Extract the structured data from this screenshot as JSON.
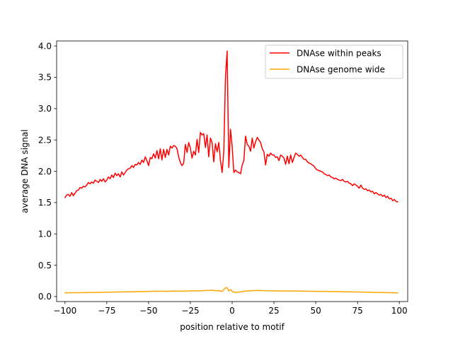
{
  "chart_data": {
    "type": "line",
    "title": "",
    "xlabel": "position relative to motif",
    "ylabel": "average DNA signal",
    "xlim": [
      -105,
      105
    ],
    "ylim": [
      -0.08,
      4.08
    ],
    "xticks": [
      -100,
      -75,
      -50,
      -25,
      0,
      25,
      50,
      75,
      100
    ],
    "yticks": [
      0.0,
      0.5,
      1.0,
      1.5,
      2.0,
      2.5,
      3.0,
      3.5,
      4.0
    ],
    "xtick_labels": [
      "−100",
      "−75",
      "−50",
      "−25",
      "0",
      "25",
      "50",
      "75",
      "100"
    ],
    "ytick_labels": [
      "0.0",
      "0.5",
      "1.0",
      "1.5",
      "2.0",
      "2.5",
      "3.0",
      "3.5",
      "4.0"
    ],
    "grid": false,
    "legend_position": "top-right",
    "series": [
      {
        "name": "DNAse within peaks",
        "color": "#ff0000",
        "points": [
          [
            -100,
            1.58
          ],
          [
            -99,
            1.62
          ],
          [
            -98,
            1.63
          ],
          [
            -97,
            1.6
          ],
          [
            -96,
            1.66
          ],
          [
            -95,
            1.61
          ],
          [
            -94,
            1.65
          ],
          [
            -93,
            1.69
          ],
          [
            -92,
            1.7
          ],
          [
            -91,
            1.74
          ],
          [
            -90,
            1.73
          ],
          [
            -89,
            1.76
          ],
          [
            -88,
            1.75
          ],
          [
            -87,
            1.78
          ],
          [
            -86,
            1.82
          ],
          [
            -85,
            1.8
          ],
          [
            -84,
            1.83
          ],
          [
            -83,
            1.81
          ],
          [
            -82,
            1.86
          ],
          [
            -81,
            1.84
          ],
          [
            -80,
            1.82
          ],
          [
            -79,
            1.87
          ],
          [
            -78,
            1.84
          ],
          [
            -77,
            1.88
          ],
          [
            -76,
            1.83
          ],
          [
            -75,
            1.86
          ],
          [
            -74,
            1.91
          ],
          [
            -73,
            1.88
          ],
          [
            -72,
            1.94
          ],
          [
            -71,
            1.9
          ],
          [
            -70,
            1.97
          ],
          [
            -69,
            1.93
          ],
          [
            -68,
            1.96
          ],
          [
            -67,
            1.91
          ],
          [
            -66,
            1.99
          ],
          [
            -65,
            1.94
          ],
          [
            -64,
            1.98
          ],
          [
            -63,
            2.02
          ],
          [
            -62,
            2.04
          ],
          [
            -61,
            2.05
          ],
          [
            -60,
            2.09
          ],
          [
            -59,
            2.06
          ],
          [
            -58,
            2.11
          ],
          [
            -57,
            2.1
          ],
          [
            -56,
            2.14
          ],
          [
            -55,
            2.11
          ],
          [
            -54,
            2.18
          ],
          [
            -53,
            2.14
          ],
          [
            -52,
            2.23
          ],
          [
            -51,
            2.17
          ],
          [
            -50,
            2.09
          ],
          [
            -49,
            2.22
          ],
          [
            -48,
            2.2
          ],
          [
            -47,
            2.28
          ],
          [
            -46,
            2.21
          ],
          [
            -45,
            2.33
          ],
          [
            -44,
            2.2
          ],
          [
            -43,
            2.36
          ],
          [
            -42,
            2.18
          ],
          [
            -41,
            2.35
          ],
          [
            -40,
            2.22
          ],
          [
            -39,
            2.35
          ],
          [
            -38,
            2.26
          ],
          [
            -37,
            2.4
          ],
          [
            -36,
            2.37
          ],
          [
            -35,
            2.41
          ],
          [
            -34,
            2.4
          ],
          [
            -33,
            2.36
          ],
          [
            -32,
            2.23
          ],
          [
            -31,
            2.14
          ],
          [
            -30,
            2.09
          ],
          [
            -29,
            2.13
          ],
          [
            -28,
            2.43
          ],
          [
            -27,
            2.3
          ],
          [
            -26,
            2.46
          ],
          [
            -25,
            2.37
          ],
          [
            -24,
            2.21
          ],
          [
            -23,
            2.32
          ],
          [
            -22,
            2.26
          ],
          [
            -21,
            2.51
          ],
          [
            -20,
            2.3
          ],
          [
            -19,
            2.62
          ],
          [
            -18,
            2.58
          ],
          [
            -17,
            2.6
          ],
          [
            -16,
            2.38
          ],
          [
            -15,
            2.58
          ],
          [
            -14,
            2.23
          ],
          [
            -13,
            2.53
          ],
          [
            -12,
            2.46
          ],
          [
            -11,
            2.15
          ],
          [
            -10,
            2.44
          ],
          [
            -9,
            2.31
          ],
          [
            -8,
            2.46
          ],
          [
            -7,
            2.17
          ],
          [
            -6,
            1.98
          ],
          [
            -5,
            2.32
          ],
          [
            -4,
            3.5
          ],
          [
            -3,
            3.92
          ],
          [
            -2,
            2.06
          ],
          [
            -1,
            2.67
          ],
          [
            0,
            2.4
          ],
          [
            1,
            1.98
          ],
          [
            2,
            2.02
          ],
          [
            3,
            1.99
          ],
          [
            4,
            1.98
          ],
          [
            5,
            1.96
          ],
          [
            6,
            2.1
          ],
          [
            7,
            2.17
          ],
          [
            8,
            2.56
          ],
          [
            9,
            2.43
          ],
          [
            10,
            2.4
          ],
          [
            11,
            2.32
          ],
          [
            12,
            2.53
          ],
          [
            13,
            2.37
          ],
          [
            14,
            2.47
          ],
          [
            15,
            2.54
          ],
          [
            16,
            2.5
          ],
          [
            17,
            2.46
          ],
          [
            18,
            2.36
          ],
          [
            19,
            2.31
          ],
          [
            20,
            2.1
          ],
          [
            21,
            2.27
          ],
          [
            22,
            2.24
          ],
          [
            23,
            2.29
          ],
          [
            24,
            2.26
          ],
          [
            25,
            2.26
          ],
          [
            26,
            2.22
          ],
          [
            27,
            2.23
          ],
          [
            28,
            2.17
          ],
          [
            29,
            2.26
          ],
          [
            30,
            2.24
          ],
          [
            31,
            2.21
          ],
          [
            32,
            2.11
          ],
          [
            33,
            2.24
          ],
          [
            34,
            2.12
          ],
          [
            35,
            2.26
          ],
          [
            36,
            2.14
          ],
          [
            37,
            2.22
          ],
          [
            38,
            2.29
          ],
          [
            39,
            2.27
          ],
          [
            40,
            2.24
          ],
          [
            41,
            2.26
          ],
          [
            42,
            2.22
          ],
          [
            43,
            2.19
          ],
          [
            44,
            2.19
          ],
          [
            45,
            2.15
          ],
          [
            46,
            2.13
          ],
          [
            47,
            2.12
          ],
          [
            48,
            2.1
          ],
          [
            49,
            2.08
          ],
          [
            50,
            2.04
          ],
          [
            51,
            2.02
          ],
          [
            52,
            2.01
          ],
          [
            53,
            2.0
          ],
          [
            54,
            1.99
          ],
          [
            55,
            1.96
          ],
          [
            56,
            1.95
          ],
          [
            57,
            1.93
          ],
          [
            58,
            1.94
          ],
          [
            59,
            1.91
          ],
          [
            60,
            1.9
          ],
          [
            61,
            1.88
          ],
          [
            62,
            1.89
          ],
          [
            63,
            1.87
          ],
          [
            64,
            1.86
          ],
          [
            65,
            1.85
          ],
          [
            66,
            1.87
          ],
          [
            67,
            1.84
          ],
          [
            68,
            1.83
          ],
          [
            69,
            1.84
          ],
          [
            70,
            1.81
          ],
          [
            71,
            1.8
          ],
          [
            72,
            1.77
          ],
          [
            73,
            1.8
          ],
          [
            74,
            1.78
          ],
          [
            75,
            1.76
          ],
          [
            76,
            1.73
          ],
          [
            77,
            1.78
          ],
          [
            78,
            1.73
          ],
          [
            79,
            1.71
          ],
          [
            80,
            1.72
          ],
          [
            81,
            1.69
          ],
          [
            82,
            1.7
          ],
          [
            83,
            1.67
          ],
          [
            84,
            1.68
          ],
          [
            85,
            1.64
          ],
          [
            86,
            1.66
          ],
          [
            87,
            1.64
          ],
          [
            88,
            1.62
          ],
          [
            89,
            1.63
          ],
          [
            90,
            1.6
          ],
          [
            91,
            1.62
          ],
          [
            92,
            1.58
          ],
          [
            93,
            1.6
          ],
          [
            94,
            1.56
          ],
          [
            95,
            1.57
          ],
          [
            96,
            1.53
          ],
          [
            97,
            1.55
          ],
          [
            98,
            1.52
          ],
          [
            99,
            1.51
          ]
        ]
      },
      {
        "name": "DNAse genome wide",
        "color": "#ffa500",
        "points": [
          [
            -100,
            0.06
          ],
          [
            -90,
            0.062
          ],
          [
            -80,
            0.066
          ],
          [
            -70,
            0.072
          ],
          [
            -60,
            0.077
          ],
          [
            -50,
            0.082
          ],
          [
            -45,
            0.087
          ],
          [
            -40,
            0.083
          ],
          [
            -35,
            0.088
          ],
          [
            -30,
            0.085
          ],
          [
            -25,
            0.09
          ],
          [
            -20,
            0.092
          ],
          [
            -15,
            0.096
          ],
          [
            -12,
            0.1
          ],
          [
            -10,
            0.094
          ],
          [
            -8,
            0.095
          ],
          [
            -6,
            0.082
          ],
          [
            -5,
            0.11
          ],
          [
            -4,
            0.14
          ],
          [
            -3,
            0.14
          ],
          [
            -2,
            0.09
          ],
          [
            -1,
            0.11
          ],
          [
            0,
            0.085
          ],
          [
            1,
            0.07
          ],
          [
            2,
            0.068
          ],
          [
            3,
            0.072
          ],
          [
            4,
            0.07
          ],
          [
            5,
            0.075
          ],
          [
            8,
            0.088
          ],
          [
            10,
            0.09
          ],
          [
            15,
            0.098
          ],
          [
            20,
            0.093
          ],
          [
            25,
            0.09
          ],
          [
            30,
            0.09
          ],
          [
            35,
            0.088
          ],
          [
            40,
            0.088
          ],
          [
            45,
            0.085
          ],
          [
            50,
            0.083
          ],
          [
            55,
            0.082
          ],
          [
            60,
            0.08
          ],
          [
            65,
            0.078
          ],
          [
            70,
            0.075
          ],
          [
            75,
            0.073
          ],
          [
            80,
            0.07
          ],
          [
            85,
            0.067
          ],
          [
            90,
            0.064
          ],
          [
            95,
            0.061
          ],
          [
            99,
            0.058
          ]
        ]
      }
    ]
  }
}
